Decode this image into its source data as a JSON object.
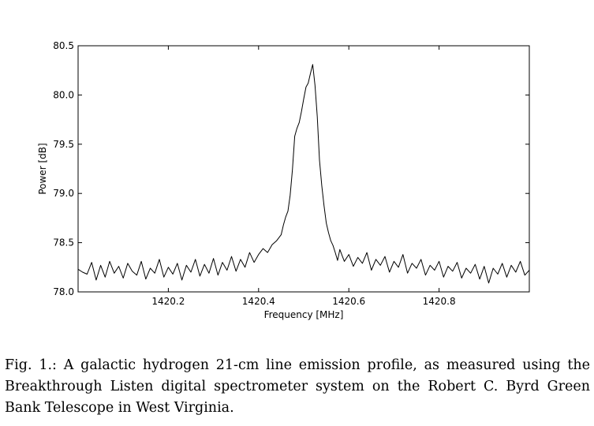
{
  "caption": "Fig. 1.: A galactic hydrogen 21-cm line emission profile, as measured using the Breakthrough Listen digital spectrometer system on the Robert C. Byrd Green Bank Telescope in West Virginia.",
  "chart_data": {
    "type": "line",
    "title": "",
    "xlabel": "Frequency [MHz]",
    "ylabel": "Power [dB]",
    "xlim": [
      1420.0,
      1421.0
    ],
    "ylim": [
      78.0,
      80.5
    ],
    "xticks": [
      1420.2,
      1420.4,
      1420.6,
      1420.8
    ],
    "xtick_labels": [
      "1420.2",
      "1420.4",
      "1420.6",
      "1420.8"
    ],
    "yticks": [
      78.0,
      78.5,
      79.0,
      79.5,
      80.0,
      80.5
    ],
    "ytick_labels": [
      "78.0",
      "78.5",
      "79.0",
      "79.5",
      "80.0",
      "80.5"
    ],
    "grid": false,
    "line_color": "#000000",
    "series": [
      {
        "x": [
          1420.0,
          1420.01,
          1420.02,
          1420.03,
          1420.04,
          1420.05,
          1420.06,
          1420.07,
          1420.08,
          1420.09,
          1420.1,
          1420.11,
          1420.12,
          1420.13,
          1420.14,
          1420.15,
          1420.16,
          1420.17,
          1420.18,
          1420.19,
          1420.2,
          1420.21,
          1420.22,
          1420.23,
          1420.24,
          1420.25,
          1420.26,
          1420.27,
          1420.28,
          1420.29,
          1420.3,
          1420.31,
          1420.32,
          1420.33,
          1420.34,
          1420.35,
          1420.36,
          1420.37,
          1420.38,
          1420.39,
          1420.4,
          1420.41,
          1420.42,
          1420.43,
          1420.44,
          1420.45,
          1420.455,
          1420.46,
          1420.465,
          1420.47,
          1420.475,
          1420.48,
          1420.485,
          1420.49,
          1420.495,
          1420.5,
          1420.505,
          1420.51,
          1420.515,
          1420.52,
          1420.525,
          1420.53,
          1420.535,
          1420.54,
          1420.545,
          1420.55,
          1420.555,
          1420.56,
          1420.565,
          1420.57,
          1420.575,
          1420.58,
          1420.59,
          1420.6,
          1420.61,
          1420.62,
          1420.63,
          1420.64,
          1420.65,
          1420.66,
          1420.67,
          1420.68,
          1420.69,
          1420.7,
          1420.71,
          1420.72,
          1420.73,
          1420.74,
          1420.75,
          1420.76,
          1420.77,
          1420.78,
          1420.79,
          1420.8,
          1420.81,
          1420.82,
          1420.83,
          1420.84,
          1420.85,
          1420.86,
          1420.87,
          1420.88,
          1420.89,
          1420.9,
          1420.91,
          1420.92,
          1420.93,
          1420.94,
          1420.95,
          1420.96,
          1420.97,
          1420.98,
          1420.99,
          1421.0
        ],
        "y": [
          78.23,
          78.2,
          78.18,
          78.3,
          78.12,
          78.27,
          78.15,
          78.31,
          78.19,
          78.26,
          78.14,
          78.29,
          78.21,
          78.17,
          78.31,
          78.13,
          78.24,
          78.19,
          78.33,
          78.15,
          78.25,
          78.18,
          78.29,
          78.12,
          78.27,
          78.2,
          78.33,
          78.16,
          78.28,
          78.19,
          78.34,
          78.17,
          78.3,
          78.22,
          78.36,
          78.21,
          78.33,
          78.25,
          78.4,
          78.3,
          78.38,
          78.44,
          78.4,
          78.48,
          78.52,
          78.58,
          78.68,
          78.76,
          78.82,
          78.98,
          79.24,
          79.58,
          79.66,
          79.72,
          79.83,
          79.96,
          80.08,
          80.12,
          80.22,
          80.31,
          80.1,
          79.78,
          79.34,
          79.08,
          78.88,
          78.7,
          78.6,
          78.52,
          78.47,
          78.4,
          78.32,
          78.43,
          78.31,
          78.38,
          78.26,
          78.35,
          78.29,
          78.4,
          78.22,
          78.33,
          78.27,
          78.36,
          78.2,
          78.31,
          78.25,
          78.38,
          78.19,
          78.29,
          78.24,
          78.33,
          78.17,
          78.27,
          78.22,
          78.31,
          78.15,
          78.26,
          78.21,
          78.3,
          78.14,
          78.24,
          78.19,
          78.28,
          78.13,
          78.26,
          78.09,
          78.24,
          78.18,
          78.29,
          78.15,
          78.27,
          78.2,
          78.31,
          78.17,
          78.22
        ]
      }
    ]
  }
}
